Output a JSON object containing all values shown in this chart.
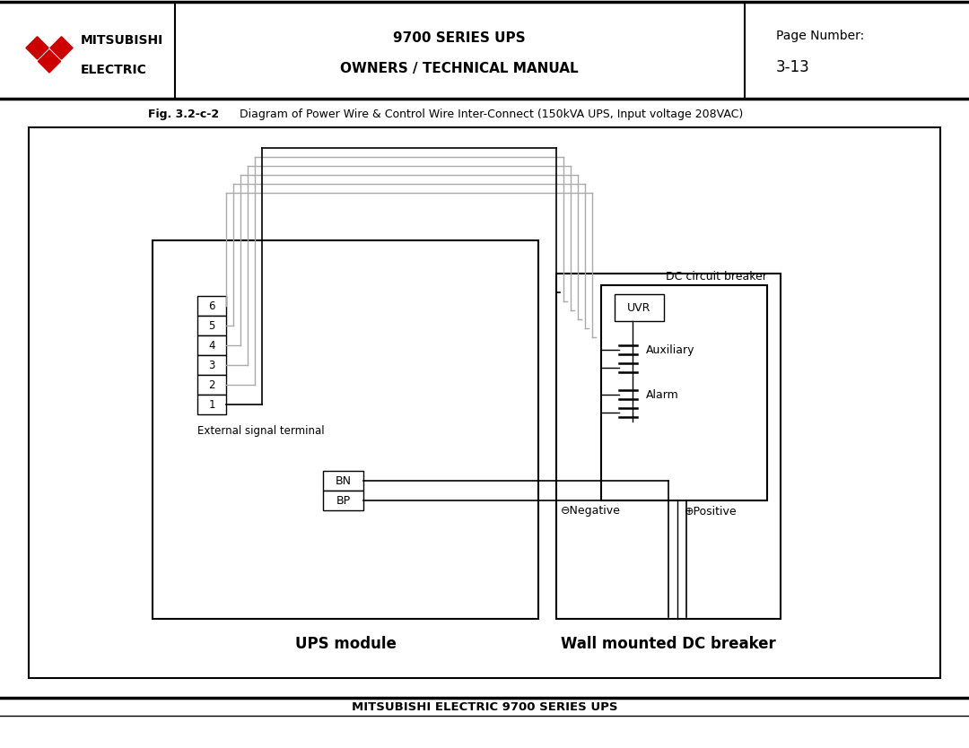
{
  "bg_color": "#ffffff",
  "header_line1_left": "MITSUBISHI",
  "header_line2_left": "ELECTRIC",
  "header_center1": "9700 SERIES UPS",
  "header_center2": "OWNERS / TECHNICAL MANUAL",
  "header_right1": "Page Number:",
  "header_right2": "3-13",
  "fig_caption_bold": "Fig. 3.2-c-2",
  "fig_caption_normal": "   Diagram of Power Wire & Control Wire Inter-Connect (150kVA UPS, Input voltage 208VAC)",
  "footer_text": "MITSUBISHI ELECTRIC 9700 SERIES UPS",
  "ups_label": "UPS module",
  "dc_label": "Wall mounted DC breaker",
  "terminal_label": "External signal terminal",
  "dc_circuit_label": "DC circuit breaker",
  "uvr_label": "UVR",
  "auxiliary_label": "Auxiliary",
  "alarm_label": "Alarm",
  "negative_label": "⊖Negative",
  "positive_label": "⊕Positive",
  "terminal_numbers": [
    "6",
    "5",
    "4",
    "3",
    "2",
    "1"
  ],
  "bn_label": "BN",
  "bp_label": "BP",
  "wire_colors": [
    "#aaaaaa",
    "#aaaaaa",
    "#aaaaaa",
    "#aaaaaa",
    "#aaaaaa",
    "#000000"
  ]
}
